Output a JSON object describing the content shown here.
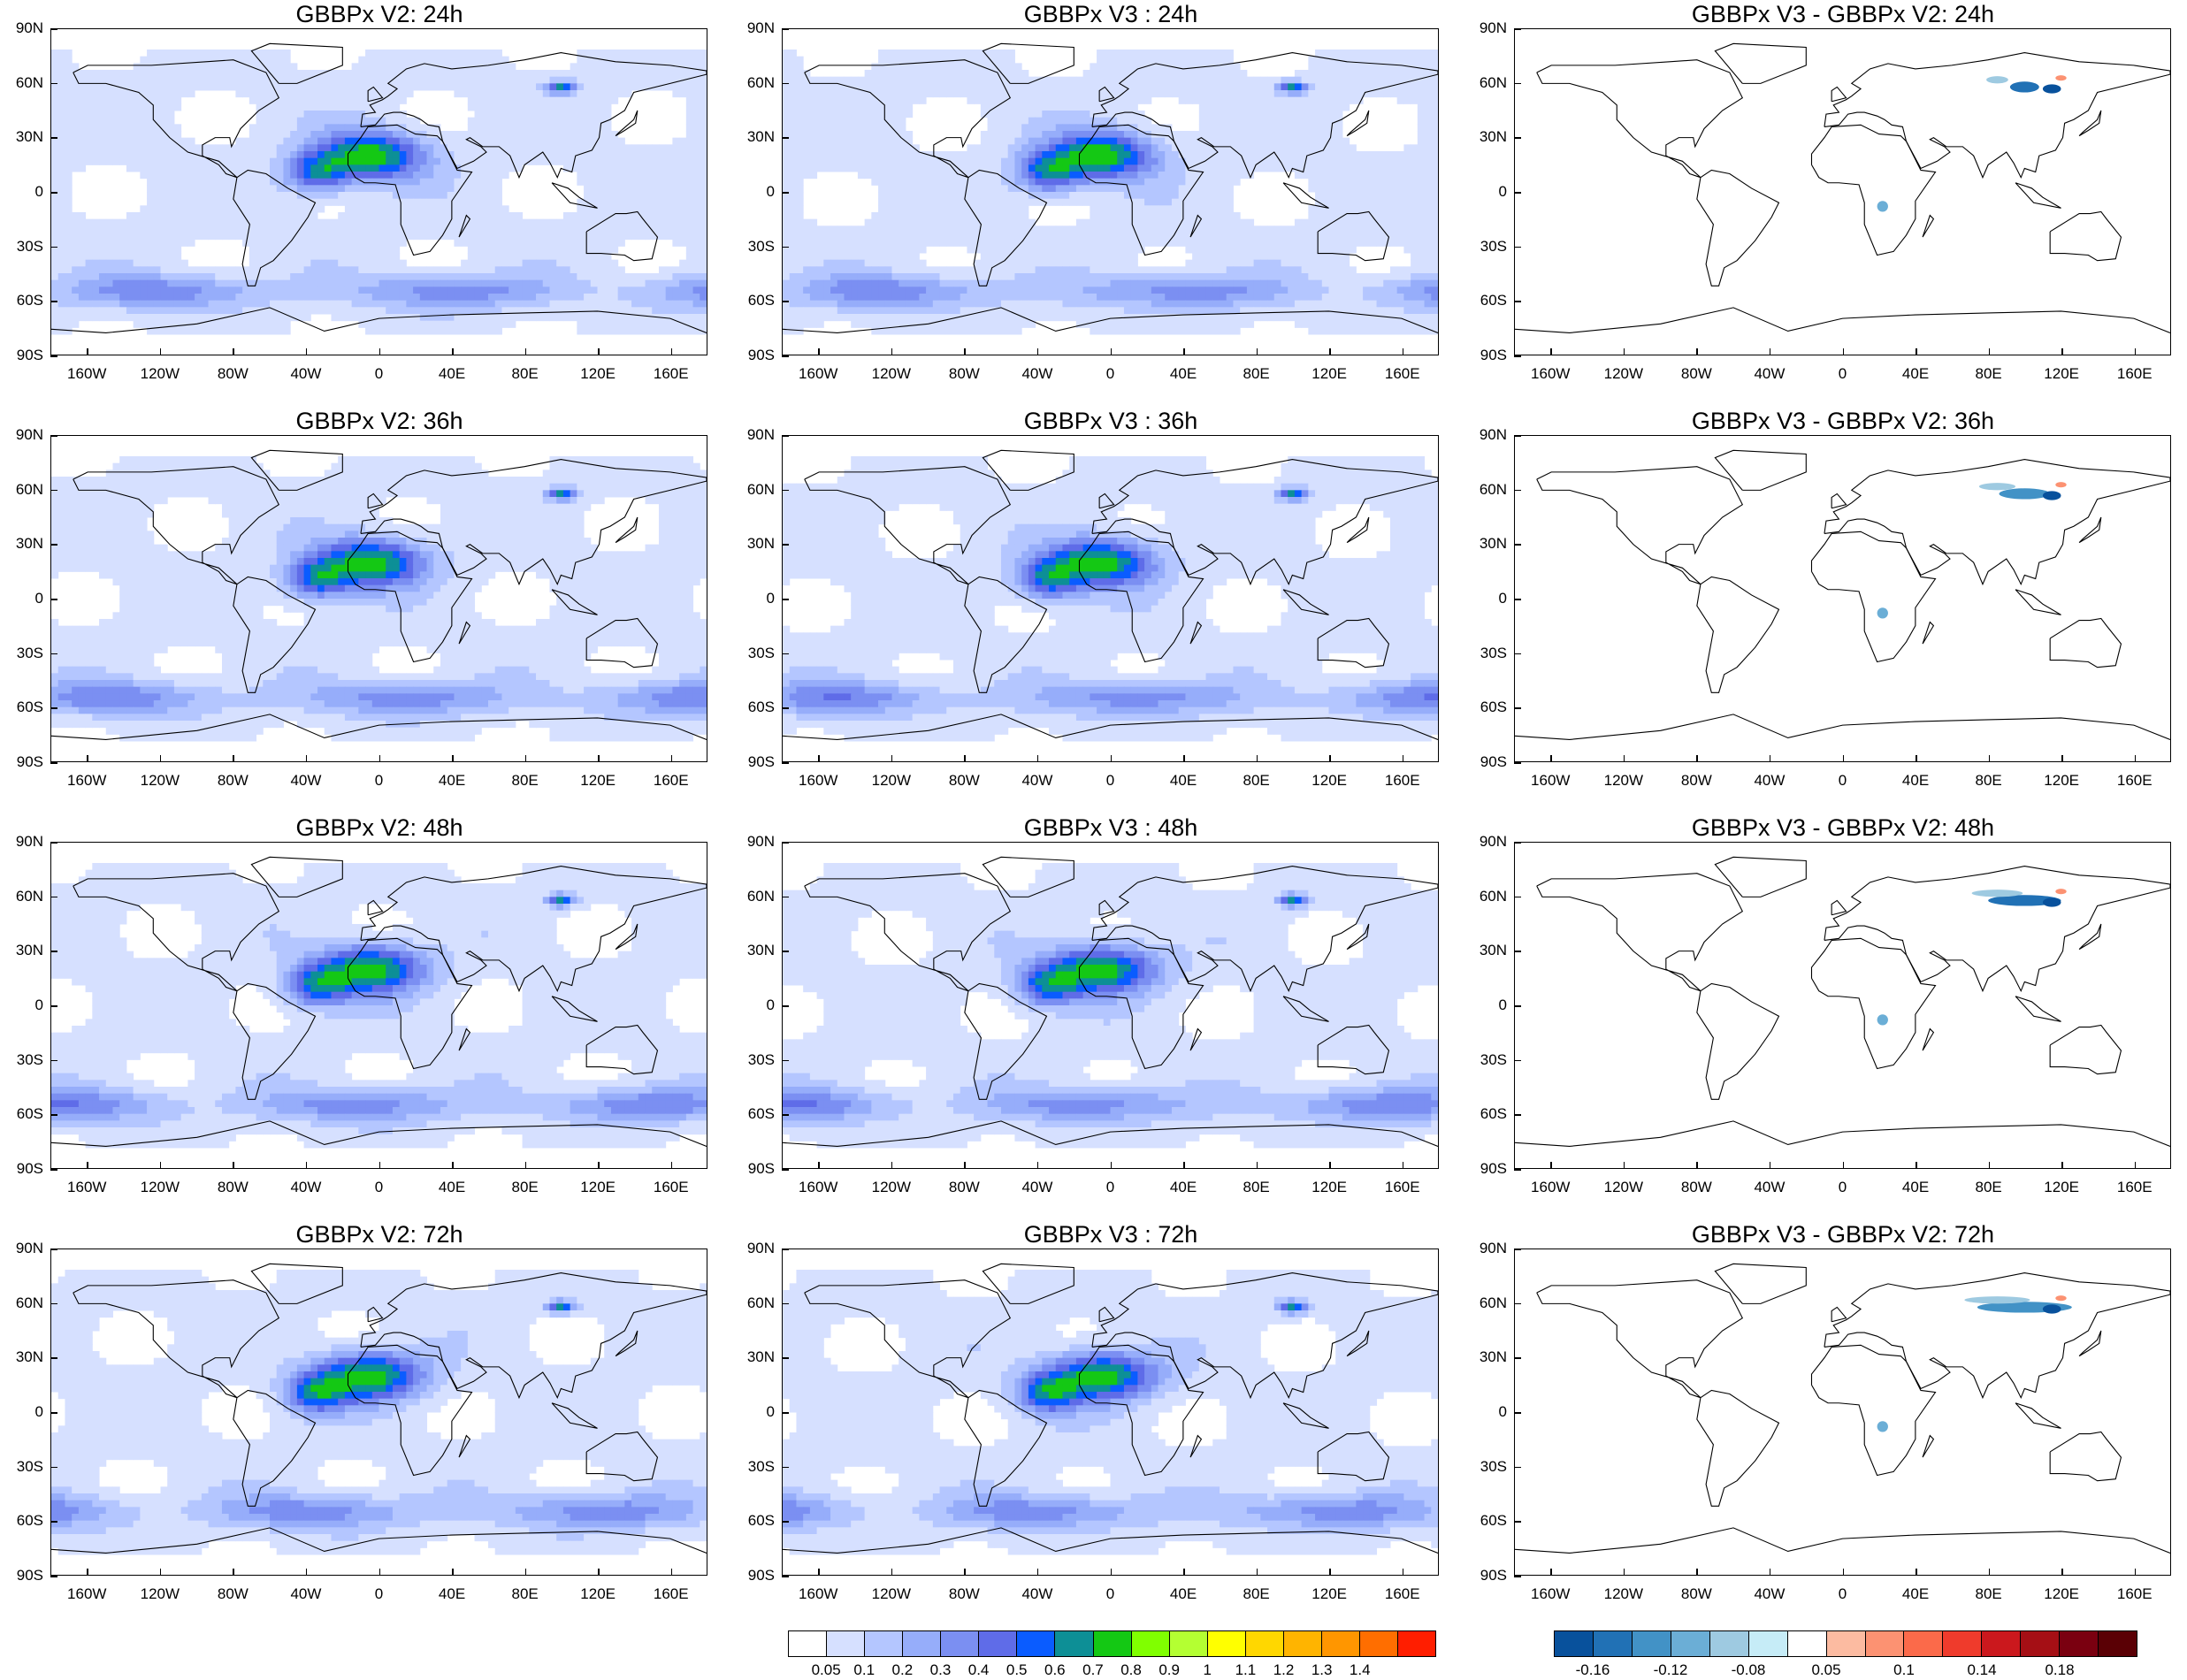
{
  "columns": [
    {
      "key": "v2",
      "titles": [
        "GBBPx V2: 24h",
        "GBBPx V2: 36h",
        "GBBPx V2: 48h",
        "GBBPx V2: 72h"
      ],
      "kind": "field"
    },
    {
      "key": "v3",
      "titles": [
        "GBBPx V3 : 24h",
        "GBBPx V3 : 36h",
        "GBBPx V3 : 48h",
        "GBBPx V3 : 72h"
      ],
      "kind": "field"
    },
    {
      "key": "diff",
      "titles": [
        "GBBPx V3 - GBBPx V2: 24h",
        "GBBPx V3 - GBBPx V2: 36h",
        "GBBPx V3 - GBBPx V2: 48h",
        "GBBPx V3 - GBBPx V2: 72h"
      ],
      "kind": "diff"
    }
  ],
  "lat_labels": [
    "90N",
    "60N",
    "30N",
    "0",
    "30S",
    "60S",
    "90S"
  ],
  "lon_labels": [
    "160W",
    "120W",
    "80W",
    "40W",
    "0",
    "40E",
    "80E",
    "120E",
    "160E"
  ],
  "lon_values": [
    -160,
    -120,
    -80,
    -40,
    0,
    40,
    80,
    120,
    160
  ],
  "lat_values": [
    90,
    60,
    30,
    0,
    -30,
    -60,
    -90
  ],
  "colorbar_main": {
    "colors": [
      "#ffffff",
      "#d6e0ff",
      "#b4c6ff",
      "#96adfa",
      "#7b8ff2",
      "#5f6ce8",
      "#0a5cff",
      "#0d8f96",
      "#14c814",
      "#80ff00",
      "#b4ff32",
      "#ffff00",
      "#ffd700",
      "#ffb400",
      "#ff9600",
      "#ff6e00",
      "#ff1e00"
    ],
    "labels": [
      "0.05",
      "0.1",
      "0.2",
      "0.3",
      "0.4",
      "0.5",
      "0.6",
      "0.7",
      "0.8",
      "0.9",
      "1",
      "1.1",
      "1.2",
      "1.3",
      "1.4"
    ]
  },
  "colorbar_diff": {
    "colors": [
      "#08519c",
      "#2171b5",
      "#4292c6",
      "#6baed6",
      "#9ecae1",
      "#c6ecf7",
      "#ffffff",
      "#fcbba1",
      "#fc9272",
      "#fb6a4a",
      "#ef3b2c",
      "#cb181d",
      "#a50f15",
      "#7a0010",
      "#5a0005"
    ],
    "labels": [
      "-0.16",
      "-0.12",
      "-0.08",
      "0.05",
      "0.1",
      "0.14",
      "0.18"
    ],
    "label_after_cell": [
      1,
      3,
      5,
      7,
      9,
      11,
      13
    ]
  },
  "colors": {
    "land_outline": "#000000",
    "low": "#d6e0ff",
    "mid": "#7b8ff2",
    "high": "#14c814",
    "peak": "#ff1e00"
  }
}
